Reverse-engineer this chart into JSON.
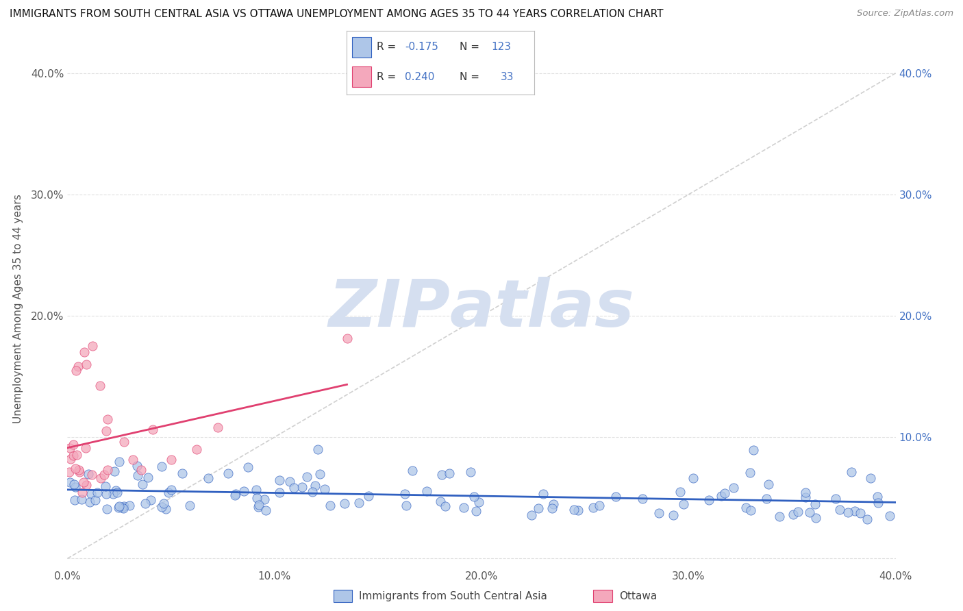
{
  "title": "IMMIGRANTS FROM SOUTH CENTRAL ASIA VS OTTAWA UNEMPLOYMENT AMONG AGES 35 TO 44 YEARS CORRELATION CHART",
  "source": "Source: ZipAtlas.com",
  "ylabel": "Unemployment Among Ages 35 to 44 years",
  "xmin": 0.0,
  "xmax": 0.4,
  "ymin": -0.008,
  "ymax": 0.42,
  "xtick_vals": [
    0.0,
    0.1,
    0.2,
    0.3,
    0.4
  ],
  "xtick_labels": [
    "0.0%",
    "10.0%",
    "20.0%",
    "30.0%",
    "40.0%"
  ],
  "ytick_vals": [
    0.0,
    0.1,
    0.2,
    0.3,
    0.4
  ],
  "ytick_labels_left": [
    "",
    "",
    "20.0%",
    "30.0%",
    "40.0%"
  ],
  "ytick_labels_right": [
    "",
    "10.0%",
    "20.0%",
    "30.0%",
    "40.0%"
  ],
  "series1_color": "#aec6e8",
  "series2_color": "#f4a8bc",
  "trend1_color": "#3060c0",
  "trend2_color": "#e04070",
  "diagonal_color": "#d0d0d0",
  "watermark_color": "#d5dff0",
  "background_color": "#ffffff",
  "grid_color": "#e0e0e0",
  "title_color": "#111111",
  "source_color": "#888888",
  "label_color": "#555555",
  "tick_color": "#555555",
  "right_tick_color": "#4472c4",
  "legend_r1": "-0.175",
  "legend_n1": "123",
  "legend_r2": "0.240",
  "legend_n2": "33"
}
